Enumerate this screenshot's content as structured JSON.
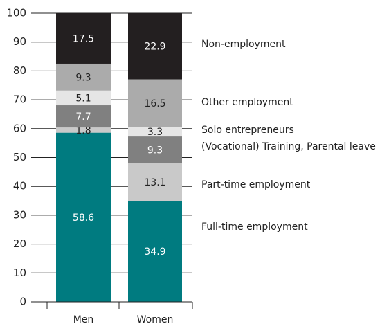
{
  "chart_data": {
    "type": "stacked_bar",
    "categories": [
      "Men",
      "Women"
    ],
    "series": [
      {
        "name": "Full-time employment",
        "color": "#007b80",
        "values": [
          58.6,
          34.9
        ]
      },
      {
        "name": "Part-time employment",
        "color": "#c9c9c9",
        "values": [
          1.8,
          13.1
        ]
      },
      {
        "name": "(Vocational) Training, Parental leave",
        "color": "#808080",
        "values": [
          7.7,
          9.3
        ]
      },
      {
        "name": "Solo entrepreneurs",
        "color": "#e5e5e5",
        "values": [
          5.1,
          3.3
        ]
      },
      {
        "name": "Other employment",
        "color": "#ababab",
        "values": [
          9.3,
          16.5
        ]
      },
      {
        "name": "Non-employment",
        "color": "#231f20",
        "values": [
          17.5,
          22.9
        ]
      }
    ],
    "ylim": [
      0,
      100
    ],
    "yticks": [
      0,
      10,
      20,
      30,
      40,
      50,
      60,
      70,
      80,
      90,
      100
    ],
    "grid": true
  }
}
